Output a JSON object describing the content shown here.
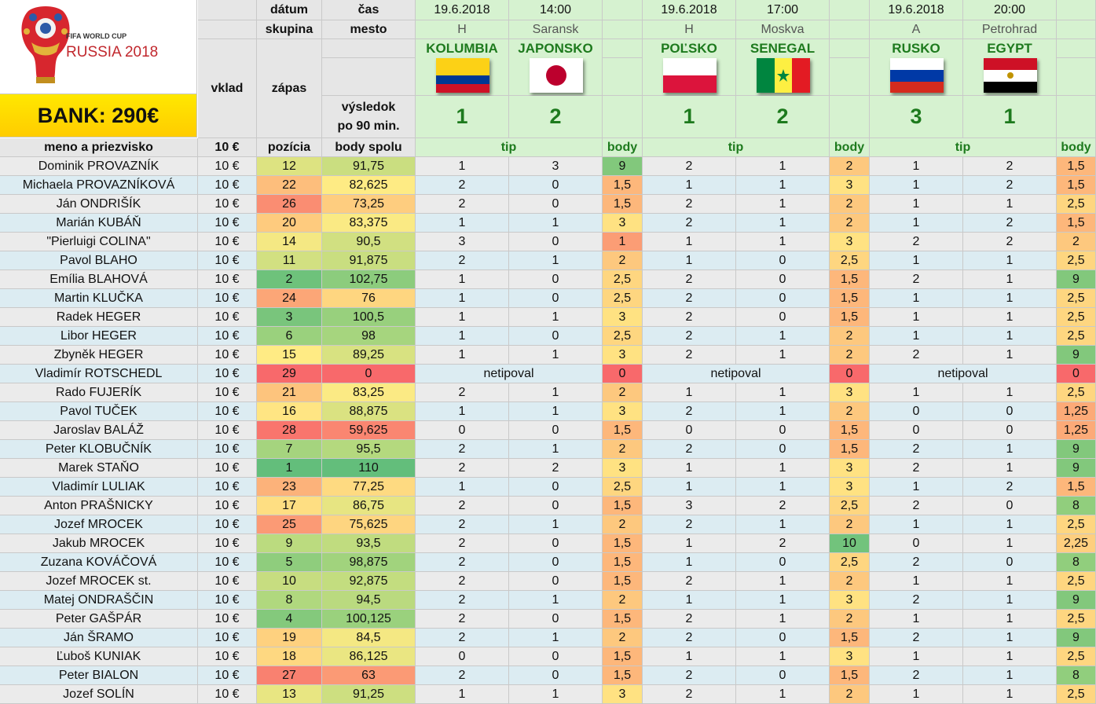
{
  "logo": {
    "line1": "FIFA WORLD CUP",
    "line2": "RUSSIA 2018"
  },
  "bank": "BANK: 290€",
  "head": {
    "datum": "dátum",
    "cas": "čas",
    "skupina": "skupina",
    "mesto": "mesto",
    "vklad": "vklad",
    "zapas": "zápas",
    "vysledok1": "výsledok",
    "vysledok2": "po 90 min.",
    "meno": "meno a priezvisko",
    "vklad_amount": "10 €",
    "pozicia": "pozícia",
    "body_spolu": "body spolu",
    "tip": "tip",
    "body": "body"
  },
  "matches": [
    {
      "date": "19.6.2018",
      "time": "14:00",
      "group": "H",
      "city": "Saransk",
      "home": "KOLUMBIA",
      "away": "JAPONSKO",
      "home_score": "1",
      "away_score": "2",
      "home_flag": "colombia-flag",
      "away_flag": "japan-flag"
    },
    {
      "date": "19.6.2018",
      "time": "17:00",
      "group": "H",
      "city": "Moskva",
      "home": "POĽSKO",
      "away": "SENEGAL",
      "home_score": "1",
      "away_score": "2",
      "home_flag": "poland-flag",
      "away_flag": "senegal-flag"
    },
    {
      "date": "19.6.2018",
      "time": "20:00",
      "group": "A",
      "city": "Petrohrad",
      "home": "RUSKO",
      "away": "EGYPT",
      "home_score": "3",
      "away_score": "1",
      "home_flag": "russia-flag",
      "away_flag": "egypt-flag"
    }
  ],
  "rows": [
    {
      "name": "Dominik PROVAZNÍK",
      "vklad": "10 €",
      "pos": "12",
      "total": "91,75",
      "t": [
        [
          "1",
          "3",
          "9"
        ],
        [
          "2",
          "1",
          "2"
        ],
        [
          "1",
          "2",
          "1,5"
        ]
      ]
    },
    {
      "name": "Michaela PROVAZNÍKOVÁ",
      "vklad": "10 €",
      "pos": "22",
      "total": "82,625",
      "t": [
        [
          "2",
          "0",
          "1,5"
        ],
        [
          "1",
          "1",
          "3"
        ],
        [
          "1",
          "2",
          "1,5"
        ]
      ]
    },
    {
      "name": "Ján ONDRIŠÍK",
      "vklad": "10 €",
      "pos": "26",
      "total": "73,25",
      "t": [
        [
          "2",
          "0",
          "1,5"
        ],
        [
          "2",
          "1",
          "2"
        ],
        [
          "1",
          "1",
          "2,5"
        ]
      ]
    },
    {
      "name": "Marián KUBÁŇ",
      "vklad": "10 €",
      "pos": "20",
      "total": "83,375",
      "t": [
        [
          "1",
          "1",
          "3"
        ],
        [
          "2",
          "1",
          "2"
        ],
        [
          "1",
          "2",
          "1,5"
        ]
      ]
    },
    {
      "name": "\"Pierluigi COLINA\"",
      "vklad": "10 €",
      "pos": "14",
      "total": "90,5",
      "t": [
        [
          "3",
          "0",
          "1"
        ],
        [
          "1",
          "1",
          "3"
        ],
        [
          "2",
          "2",
          "2"
        ]
      ]
    },
    {
      "name": "Pavol BLAHO",
      "vklad": "10 €",
      "pos": "11",
      "total": "91,875",
      "t": [
        [
          "2",
          "1",
          "2"
        ],
        [
          "1",
          "0",
          "2,5"
        ],
        [
          "1",
          "1",
          "2,5"
        ]
      ]
    },
    {
      "name": "Emília BLAHOVÁ",
      "vklad": "10 €",
      "pos": "2",
      "total": "102,75",
      "t": [
        [
          "1",
          "0",
          "2,5"
        ],
        [
          "2",
          "0",
          "1,5"
        ],
        [
          "2",
          "1",
          "9"
        ]
      ]
    },
    {
      "name": "Martin KLUČKA",
      "vklad": "10 €",
      "pos": "24",
      "total": "76",
      "t": [
        [
          "1",
          "0",
          "2,5"
        ],
        [
          "2",
          "0",
          "1,5"
        ],
        [
          "1",
          "1",
          "2,5"
        ]
      ]
    },
    {
      "name": "Radek HEGER",
      "vklad": "10 €",
      "pos": "3",
      "total": "100,5",
      "t": [
        [
          "1",
          "1",
          "3"
        ],
        [
          "2",
          "0",
          "1,5"
        ],
        [
          "1",
          "1",
          "2,5"
        ]
      ]
    },
    {
      "name": "Libor HEGER",
      "vklad": "10 €",
      "pos": "6",
      "total": "98",
      "t": [
        [
          "1",
          "0",
          "2,5"
        ],
        [
          "2",
          "1",
          "2"
        ],
        [
          "1",
          "1",
          "2,5"
        ]
      ]
    },
    {
      "name": "Zbyněk HEGER",
      "vklad": "10 €",
      "pos": "15",
      "total": "89,25",
      "t": [
        [
          "1",
          "1",
          "3"
        ],
        [
          "2",
          "1",
          "2"
        ],
        [
          "2",
          "1",
          "9"
        ]
      ]
    },
    {
      "name": "Vladimír ROTSCHEDL",
      "vklad": "10 €",
      "pos": "29",
      "total": "0",
      "t": [
        [
          "netipoval",
          "",
          "0"
        ],
        [
          "netipoval",
          "",
          "0"
        ],
        [
          "netipoval",
          "",
          "0"
        ]
      ]
    },
    {
      "name": "Rado FUJERÍK",
      "vklad": "10 €",
      "pos": "21",
      "total": "83,25",
      "t": [
        [
          "2",
          "1",
          "2"
        ],
        [
          "1",
          "1",
          "3"
        ],
        [
          "1",
          "1",
          "2,5"
        ]
      ]
    },
    {
      "name": "Pavol TUČEK",
      "vklad": "10 €",
      "pos": "16",
      "total": "88,875",
      "t": [
        [
          "1",
          "1",
          "3"
        ],
        [
          "2",
          "1",
          "2"
        ],
        [
          "0",
          "0",
          "1,25"
        ]
      ]
    },
    {
      "name": "Jaroslav BALÁŽ",
      "vklad": "10 €",
      "pos": "28",
      "total": "59,625",
      "t": [
        [
          "0",
          "0",
          "1,5"
        ],
        [
          "0",
          "0",
          "1,5"
        ],
        [
          "0",
          "0",
          "1,25"
        ]
      ]
    },
    {
      "name": "Peter KLOBUČNÍK",
      "vklad": "10 €",
      "pos": "7",
      "total": "95,5",
      "t": [
        [
          "2",
          "1",
          "2"
        ],
        [
          "2",
          "0",
          "1,5"
        ],
        [
          "2",
          "1",
          "9"
        ]
      ]
    },
    {
      "name": "Marek STAŇO",
      "vklad": "10 €",
      "pos": "1",
      "total": "110",
      "t": [
        [
          "2",
          "2",
          "3"
        ],
        [
          "1",
          "1",
          "3"
        ],
        [
          "2",
          "1",
          "9"
        ]
      ]
    },
    {
      "name": "Vladimír LULIAK",
      "vklad": "10 €",
      "pos": "23",
      "total": "77,25",
      "t": [
        [
          "1",
          "0",
          "2,5"
        ],
        [
          "1",
          "1",
          "3"
        ],
        [
          "1",
          "2",
          "1,5"
        ]
      ]
    },
    {
      "name": "Anton PRAŠNICKY",
      "vklad": "10 €",
      "pos": "17",
      "total": "86,75",
      "t": [
        [
          "2",
          "0",
          "1,5"
        ],
        [
          "3",
          "2",
          "2,5"
        ],
        [
          "2",
          "0",
          "8"
        ]
      ]
    },
    {
      "name": "Jozef MROCEK",
      "vklad": "10 €",
      "pos": "25",
      "total": "75,625",
      "t": [
        [
          "2",
          "1",
          "2"
        ],
        [
          "2",
          "1",
          "2"
        ],
        [
          "1",
          "1",
          "2,5"
        ]
      ]
    },
    {
      "name": "Jakub MROCEK",
      "vklad": "10 €",
      "pos": "9",
      "total": "93,5",
      "t": [
        [
          "2",
          "0",
          "1,5"
        ],
        [
          "1",
          "2",
          "10"
        ],
        [
          "0",
          "1",
          "2,25"
        ]
      ]
    },
    {
      "name": "Zuzana KOVÁČOVÁ",
      "vklad": "10 €",
      "pos": "5",
      "total": "98,875",
      "t": [
        [
          "2",
          "0",
          "1,5"
        ],
        [
          "1",
          "0",
          "2,5"
        ],
        [
          "2",
          "0",
          "8"
        ]
      ]
    },
    {
      "name": "Jozef MROCEK st.",
      "vklad": "10 €",
      "pos": "10",
      "total": "92,875",
      "t": [
        [
          "2",
          "0",
          "1,5"
        ],
        [
          "2",
          "1",
          "2"
        ],
        [
          "1",
          "1",
          "2,5"
        ]
      ]
    },
    {
      "name": "Matej ONDRAŠČIN",
      "vklad": "10 €",
      "pos": "8",
      "total": "94,5",
      "t": [
        [
          "2",
          "1",
          "2"
        ],
        [
          "1",
          "1",
          "3"
        ],
        [
          "2",
          "1",
          "9"
        ]
      ]
    },
    {
      "name": "Peter GAŠPÁR",
      "vklad": "10 €",
      "pos": "4",
      "total": "100,125",
      "t": [
        [
          "2",
          "0",
          "1,5"
        ],
        [
          "2",
          "1",
          "2"
        ],
        [
          "1",
          "1",
          "2,5"
        ]
      ]
    },
    {
      "name": "Ján ŠRAMO",
      "vklad": "10 €",
      "pos": "19",
      "total": "84,5",
      "t": [
        [
          "2",
          "1",
          "2"
        ],
        [
          "2",
          "0",
          "1,5"
        ],
        [
          "2",
          "1",
          "9"
        ]
      ]
    },
    {
      "name": "Ľuboš KUNIAK",
      "vklad": "10 €",
      "pos": "18",
      "total": "86,125",
      "t": [
        [
          "0",
          "0",
          "1,5"
        ],
        [
          "1",
          "1",
          "3"
        ],
        [
          "1",
          "1",
          "2,5"
        ]
      ]
    },
    {
      "name": "Peter BIALON",
      "vklad": "10 €",
      "pos": "27",
      "total": "63",
      "t": [
        [
          "2",
          "0",
          "1,5"
        ],
        [
          "2",
          "0",
          "1,5"
        ],
        [
          "2",
          "1",
          "8"
        ]
      ]
    },
    {
      "name": "Jozef SOLÍN",
      "vklad": "10 €",
      "pos": "13",
      "total": "91,25",
      "t": [
        [
          "1",
          "1",
          "3"
        ],
        [
          "2",
          "1",
          "2"
        ],
        [
          "1",
          "1",
          "2,5"
        ]
      ]
    }
  ]
}
